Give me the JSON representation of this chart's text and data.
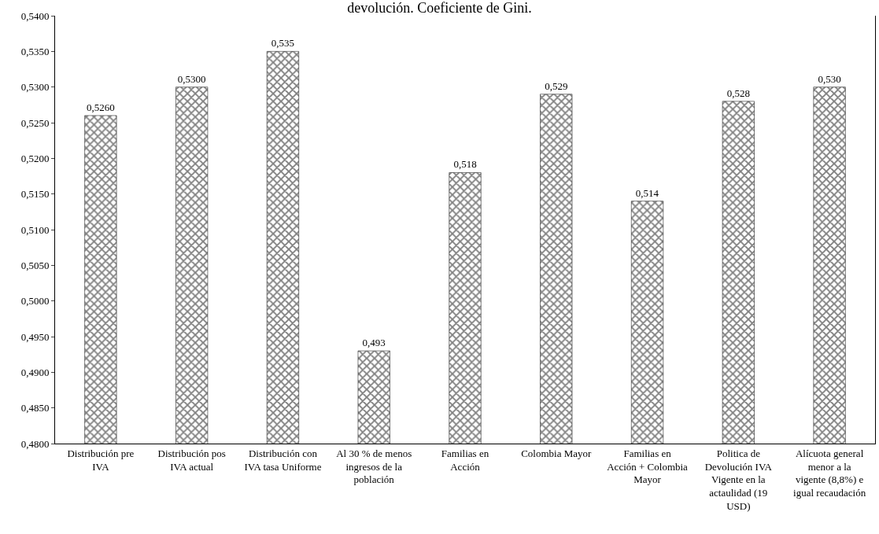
{
  "chart_data": {
    "type": "bar",
    "title": "devolución. Coeficiente de Gini.",
    "categories": [
      "Distribución pre IVA",
      "Distribución pos IVA actual",
      "Distribución con IVA tasa Uniforme",
      "Al 30 % de menos ingresos de la población",
      "Familias en Acción",
      "Colombia Mayor",
      "Familias en Acción + Colombia Mayor",
      "Politica de Devolución IVA Vigente en la actaulidad (19 USD)",
      "Alícuota general menor a la vigente (8,8%) e igual recaudación"
    ],
    "values": [
      0.526,
      0.53,
      0.535,
      0.493,
      0.518,
      0.529,
      0.514,
      0.528,
      0.53
    ],
    "value_labels": [
      "0,5260",
      "0,5300",
      "0,535",
      "0,493",
      "0,518",
      "0,529",
      "0,514",
      "0,528",
      "0,530"
    ],
    "color": "#000000",
    "ylim": [
      0.48,
      0.54
    ],
    "yticks": [
      {
        "value": 0.48,
        "label": "0,4800"
      },
      {
        "value": 0.485,
        "label": "0,4850"
      },
      {
        "value": 0.49,
        "label": "0,4900"
      },
      {
        "value": 0.495,
        "label": "0,4950"
      },
      {
        "value": 0.5,
        "label": "0,5000"
      },
      {
        "value": 0.505,
        "label": "0,5050"
      },
      {
        "value": 0.51,
        "label": "0,5100"
      },
      {
        "value": 0.515,
        "label": "0,5150"
      },
      {
        "value": 0.52,
        "label": "0,5200"
      },
      {
        "value": 0.525,
        "label": "0,5250"
      },
      {
        "value": 0.53,
        "label": "0,5300"
      },
      {
        "value": 0.535,
        "label": "0,5350"
      },
      {
        "value": 0.54,
        "label": "0,5400"
      }
    ],
    "legend": false
  }
}
